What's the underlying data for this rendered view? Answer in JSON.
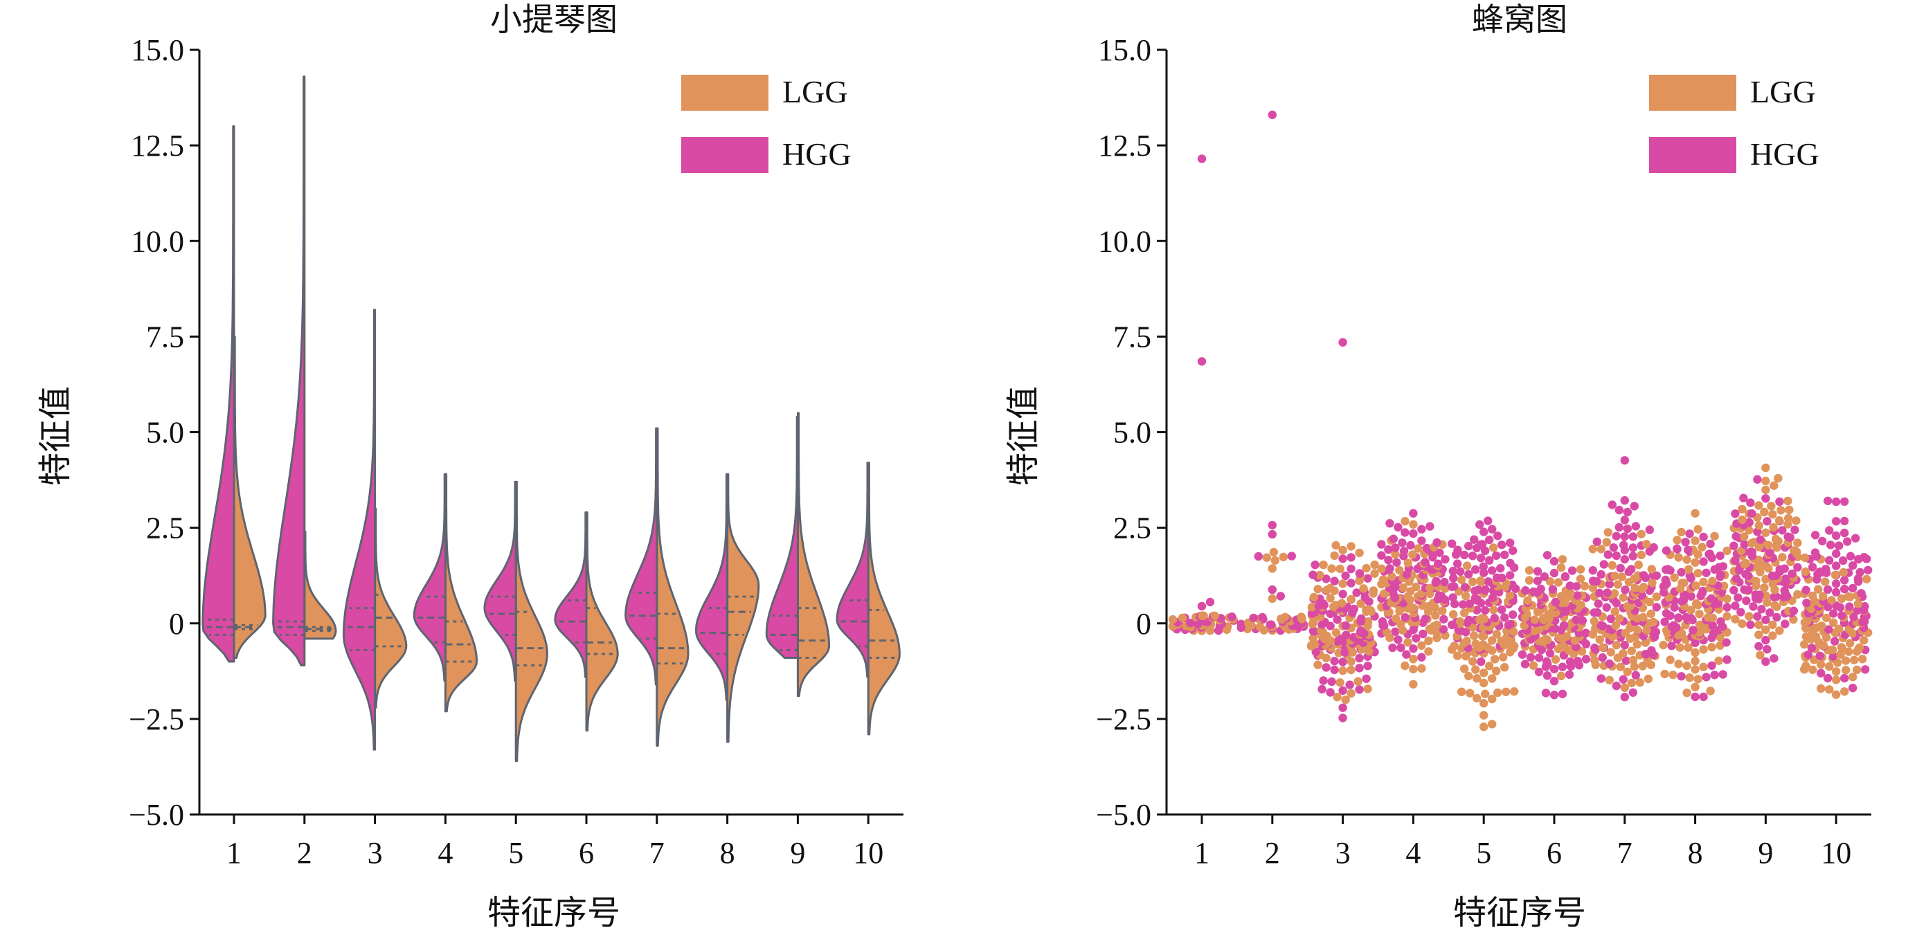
{
  "colors": {
    "LGG": "#e0935a",
    "HGG": "#d94aa5",
    "outline": "#5e6470",
    "axis": "#111111"
  },
  "chart_data": [
    {
      "type": "violin",
      "title": "小提琴图",
      "xlabel": "特征序号",
      "ylabel": "特征值",
      "ylim": [
        -5.0,
        15.0
      ],
      "yticks": [
        "15.0",
        "12.5",
        "10.0",
        "7.5",
        "5.0",
        "2.5",
        "0",
        "−2.5",
        "−5.0"
      ],
      "yticks_values": [
        15.0,
        12.5,
        10.0,
        7.5,
        5.0,
        2.5,
        0,
        -2.5,
        -5.0
      ],
      "categories": [
        "1",
        "2",
        "3",
        "4",
        "5",
        "6",
        "7",
        "8",
        "9",
        "10"
      ],
      "legend": {
        "position": "top-right",
        "entries": [
          "LGG",
          "HGG"
        ]
      },
      "series": [
        {
          "name": "LGG",
          "side": "right",
          "min": [
            -0.9,
            -0.4,
            -2.2,
            -2.3,
            -3.6,
            -2.8,
            -3.2,
            -3.1,
            -1.9,
            -2.9
          ],
          "max": [
            7.5,
            2.4,
            3.0,
            3.9,
            3.7,
            2.9,
            5.1,
            3.9,
            5.5,
            4.2
          ],
          "mode": [
            0.2,
            -0.2,
            -0.6,
            -1.0,
            -0.8,
            -0.8,
            -0.8,
            1.0,
            -0.6,
            -0.8
          ],
          "quartiles": [
            [
              -0.15,
              -0.1,
              -0.05
            ],
            [
              -0.2,
              -0.15,
              -0.1
            ],
            [
              -0.6,
              0.15,
              0.75
            ],
            [
              -1.0,
              -0.55,
              0.05
            ],
            [
              -1.1,
              -0.65,
              0.3
            ],
            [
              -0.8,
              -0.5,
              0.4
            ],
            [
              -1.05,
              -0.65,
              0.25
            ],
            [
              -0.3,
              0.3,
              0.7
            ],
            [
              -0.9,
              -0.45,
              0.4
            ],
            [
              -0.9,
              -0.45,
              0.35
            ]
          ]
        },
        {
          "name": "HGG",
          "side": "left",
          "min": [
            -1.0,
            -1.1,
            -3.3,
            -1.5,
            -1.5,
            -1.4,
            -1.6,
            -2.0,
            -0.9,
            -1.4
          ],
          "max": [
            13.0,
            14.3,
            8.2,
            3.9,
            3.7,
            2.9,
            5.1,
            3.9,
            5.4,
            4.2
          ],
          "mode": [
            -0.1,
            -0.1,
            -0.3,
            0.2,
            0.4,
            0.1,
            0.2,
            -0.2,
            -0.3,
            0.1
          ],
          "quartiles": [
            [
              -0.3,
              -0.1,
              0.1
            ],
            [
              -0.3,
              -0.1,
              0.05
            ],
            [
              -0.7,
              -0.1,
              0.4
            ],
            [
              -0.5,
              0.15,
              0.7
            ],
            [
              -0.3,
              0.25,
              0.7
            ],
            [
              -0.5,
              0.05,
              0.6
            ],
            [
              -0.4,
              0.2,
              0.8
            ],
            [
              -0.8,
              -0.25,
              0.4
            ],
            [
              -0.7,
              -0.3,
              0.2
            ],
            [
              -0.6,
              0.05,
              0.6
            ]
          ]
        }
      ]
    },
    {
      "type": "swarm",
      "title": "蜂窝图",
      "xlabel": "特征序号",
      "ylabel": "特征值",
      "ylim": [
        -5.0,
        15.0
      ],
      "yticks": [
        "15.0",
        "12.5",
        "10.0",
        "7.5",
        "5.0",
        "2.5",
        "0",
        "−2.5",
        "−5.0"
      ],
      "yticks_values": [
        15.0,
        12.5,
        10.0,
        7.5,
        5.0,
        2.5,
        0,
        -2.5,
        -5.0
      ],
      "categories": [
        "1",
        "2",
        "3",
        "4",
        "5",
        "6",
        "7",
        "8",
        "9",
        "10"
      ],
      "legend": {
        "position": "top-right",
        "entries": [
          "LGG",
          "HGG"
        ]
      },
      "series": [
        {
          "name": "LGG",
          "min": [
            -0.2,
            -0.2,
            -2.0,
            -1.6,
            -2.8,
            -1.6,
            -2.4,
            -2.2,
            -1.2,
            -2.3
          ],
          "max": [
            0.3,
            2.3,
            2.3,
            2.8,
            2.0,
            1.8,
            2.5,
            3.0,
            4.5,
            2.0
          ],
          "outliers": [
            [],
            [],
            [],
            [],
            [],
            [],
            [],
            [],
            [],
            []
          ]
        },
        {
          "name": "HGG",
          "min": [
            -0.2,
            -0.2,
            -2.5,
            -1.3,
            -1.7,
            -2.2,
            -2.5,
            -2.0,
            -1.2,
            -2.1
          ],
          "max": [
            0.9,
            2.9,
            2.2,
            3.2,
            3.1,
            2.2,
            4.5,
            3.2,
            4.0,
            3.4
          ],
          "outliers": [
            [
              12.15,
              6.85
            ],
            [
              13.3
            ],
            [
              7.35
            ],
            [],
            [],
            [],
            [],
            [],
            [],
            []
          ]
        }
      ]
    }
  ]
}
